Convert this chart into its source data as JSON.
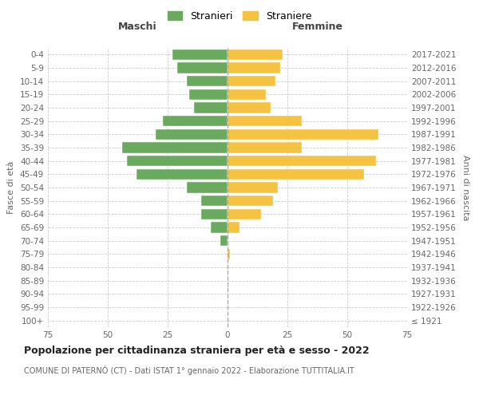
{
  "age_groups": [
    "100+",
    "95-99",
    "90-94",
    "85-89",
    "80-84",
    "75-79",
    "70-74",
    "65-69",
    "60-64",
    "55-59",
    "50-54",
    "45-49",
    "40-44",
    "35-39",
    "30-34",
    "25-29",
    "20-24",
    "15-19",
    "10-14",
    "5-9",
    "0-4"
  ],
  "birth_years": [
    "≤ 1921",
    "1922-1926",
    "1927-1931",
    "1932-1936",
    "1937-1941",
    "1942-1946",
    "1947-1951",
    "1952-1956",
    "1957-1961",
    "1962-1966",
    "1967-1971",
    "1972-1976",
    "1977-1981",
    "1982-1986",
    "1987-1991",
    "1992-1996",
    "1997-2001",
    "2002-2006",
    "2007-2011",
    "2012-2016",
    "2017-2021"
  ],
  "maschi": [
    0,
    0,
    0,
    0,
    0,
    0,
    3,
    7,
    11,
    11,
    17,
    38,
    42,
    44,
    30,
    27,
    14,
    16,
    17,
    21,
    23
  ],
  "femmine": [
    0,
    0,
    0,
    0,
    0,
    1,
    0,
    5,
    14,
    19,
    21,
    57,
    62,
    31,
    63,
    31,
    18,
    16,
    20,
    22,
    23
  ],
  "color_maschi": "#6aaa5e",
  "color_femmine": "#f5c242",
  "background_color": "#ffffff",
  "grid_color": "#cccccc",
  "title": "Popolazione per cittadinanza straniera per età e sesso - 2022",
  "subtitle": "COMUNE DI PATERNÒ (CT) - Dati ISTAT 1° gennaio 2022 - Elaborazione TUTTITALIA.IT",
  "xlabel_left": "Maschi",
  "xlabel_right": "Femmine",
  "ylabel_left": "Fasce di età",
  "ylabel_right": "Anni di nascita",
  "legend_maschi": "Stranieri",
  "legend_femmine": "Straniere",
  "xlim": 75
}
